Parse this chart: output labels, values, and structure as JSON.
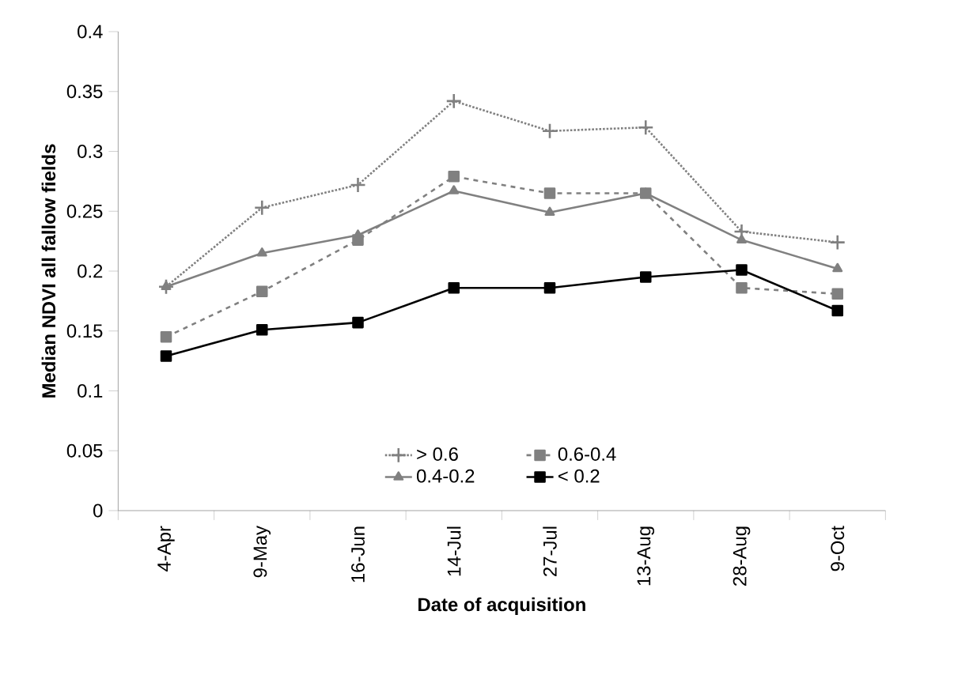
{
  "chart_data": {
    "type": "line",
    "xlabel": "Date of acquisition",
    "ylabel": "Median NDVI all fallow fields",
    "categories": [
      "4-Apr",
      "9-May",
      "16-Jun",
      "14-Jul",
      "27-Jul",
      "13-Aug",
      "28-Aug",
      "9-Oct"
    ],
    "ylim": [
      0,
      0.4
    ],
    "yticks": [
      0,
      0.05,
      0.1,
      0.15,
      0.2,
      0.25,
      0.3,
      0.35,
      0.4
    ],
    "legend": "bottom",
    "grid": false,
    "series": [
      {
        "name": "> 0.6",
        "color": "#808080",
        "marker": "cross",
        "line_style": "dotted",
        "values": [
          0.187,
          0.253,
          0.272,
          0.342,
          0.317,
          0.32,
          0.233,
          0.224
        ]
      },
      {
        "name": "0.6-0.4",
        "color": "#808080",
        "marker": "square",
        "line_style": "dashed",
        "values": [
          0.145,
          0.183,
          0.226,
          0.279,
          0.265,
          0.265,
          0.186,
          0.181
        ]
      },
      {
        "name": "0.4-0.2",
        "color": "#808080",
        "marker": "triangle",
        "line_style": "solid",
        "values": [
          0.187,
          0.215,
          0.23,
          0.267,
          0.249,
          0.265,
          0.226,
          0.202
        ]
      },
      {
        "name": "< 0.2",
        "color": "#000000",
        "marker": "square",
        "line_style": "solid",
        "values": [
          0.129,
          0.151,
          0.157,
          0.186,
          0.186,
          0.195,
          0.201,
          0.167
        ]
      }
    ]
  }
}
